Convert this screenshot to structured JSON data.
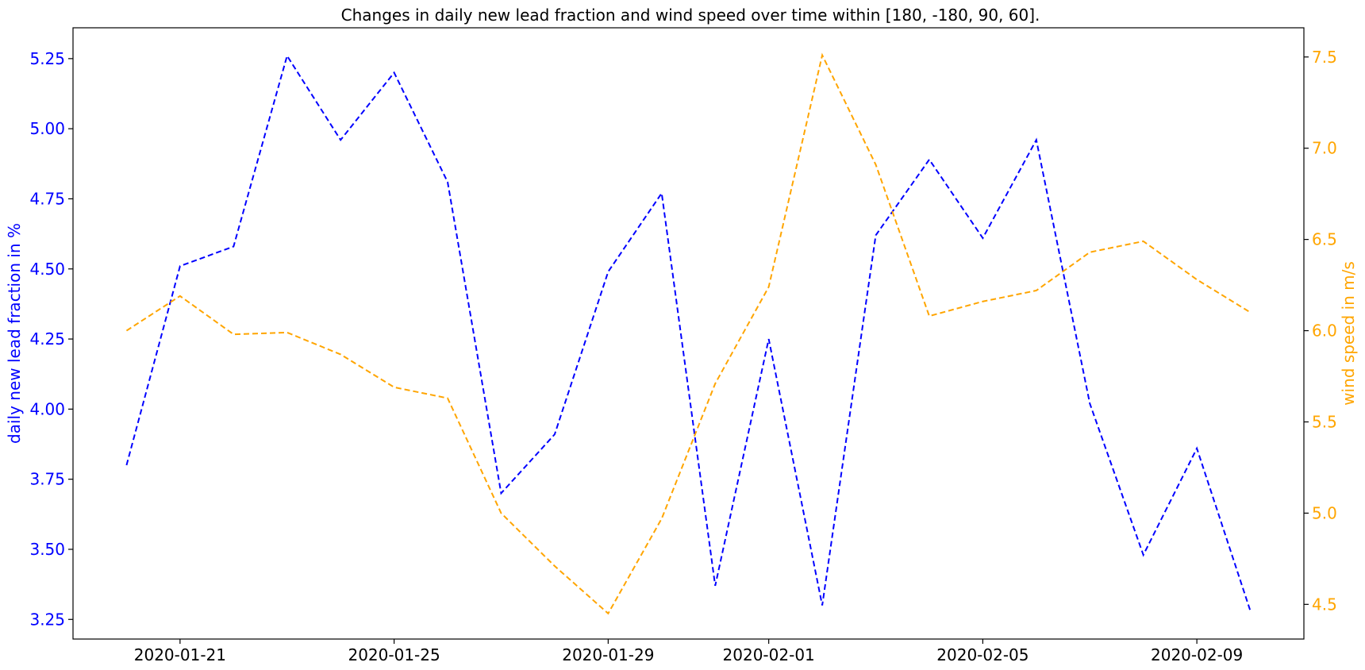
{
  "chart_data": {
    "type": "line",
    "title": "Changes in daily new lead fraction and wind speed over time within [180, -180, 90, 60].",
    "x": [
      "2020-01-20",
      "2020-01-21",
      "2020-01-22",
      "2020-01-23",
      "2020-01-24",
      "2020-01-25",
      "2020-01-26",
      "2020-01-27",
      "2020-01-28",
      "2020-01-29",
      "2020-01-30",
      "2020-01-31",
      "2020-02-01",
      "2020-02-02",
      "2020-02-03",
      "2020-02-04",
      "2020-02-05",
      "2020-02-06",
      "2020-02-07",
      "2020-02-08",
      "2020-02-09",
      "2020-02-10"
    ],
    "xticks": [
      "2020-01-21",
      "2020-01-25",
      "2020-01-29",
      "2020-02-01",
      "2020-02-05",
      "2020-02-09"
    ],
    "xlim": [
      "2020-01-19",
      "2020-02-11"
    ],
    "series": [
      {
        "axis": "left",
        "color": "#0000ff",
        "style": "dashed",
        "values": [
          3.8,
          4.51,
          4.58,
          5.26,
          4.96,
          5.2,
          4.81,
          3.7,
          3.91,
          4.49,
          4.77,
          3.37,
          4.25,
          3.3,
          4.62,
          4.89,
          4.61,
          4.96,
          4.02,
          3.48,
          3.86,
          3.28
        ]
      },
      {
        "axis": "right",
        "color": "#ffa500",
        "style": "dashed",
        "values": [
          6.0,
          6.19,
          5.98,
          5.99,
          5.87,
          5.69,
          5.63,
          5.0,
          4.71,
          4.45,
          4.97,
          5.71,
          6.24,
          7.51,
          6.91,
          6.08,
          6.16,
          6.22,
          6.43,
          6.49,
          6.28,
          6.1
        ]
      }
    ],
    "y_left": {
      "label": "daily new lead fraction in %",
      "color": "#0000ff",
      "ticks": [
        "3.25",
        "3.50",
        "3.75",
        "4.00",
        "4.25",
        "4.50",
        "4.75",
        "5.00",
        "5.25"
      ],
      "ylim": [
        3.18,
        5.36
      ]
    },
    "y_right": {
      "label": "wind speed in m/s",
      "color": "#ffa500",
      "ticks": [
        "4.5",
        "5.0",
        "5.5",
        "6.0",
        "6.5",
        "7.0",
        "7.5"
      ],
      "ylim": [
        4.31,
        7.66
      ]
    },
    "grid": false,
    "legend": false
  }
}
